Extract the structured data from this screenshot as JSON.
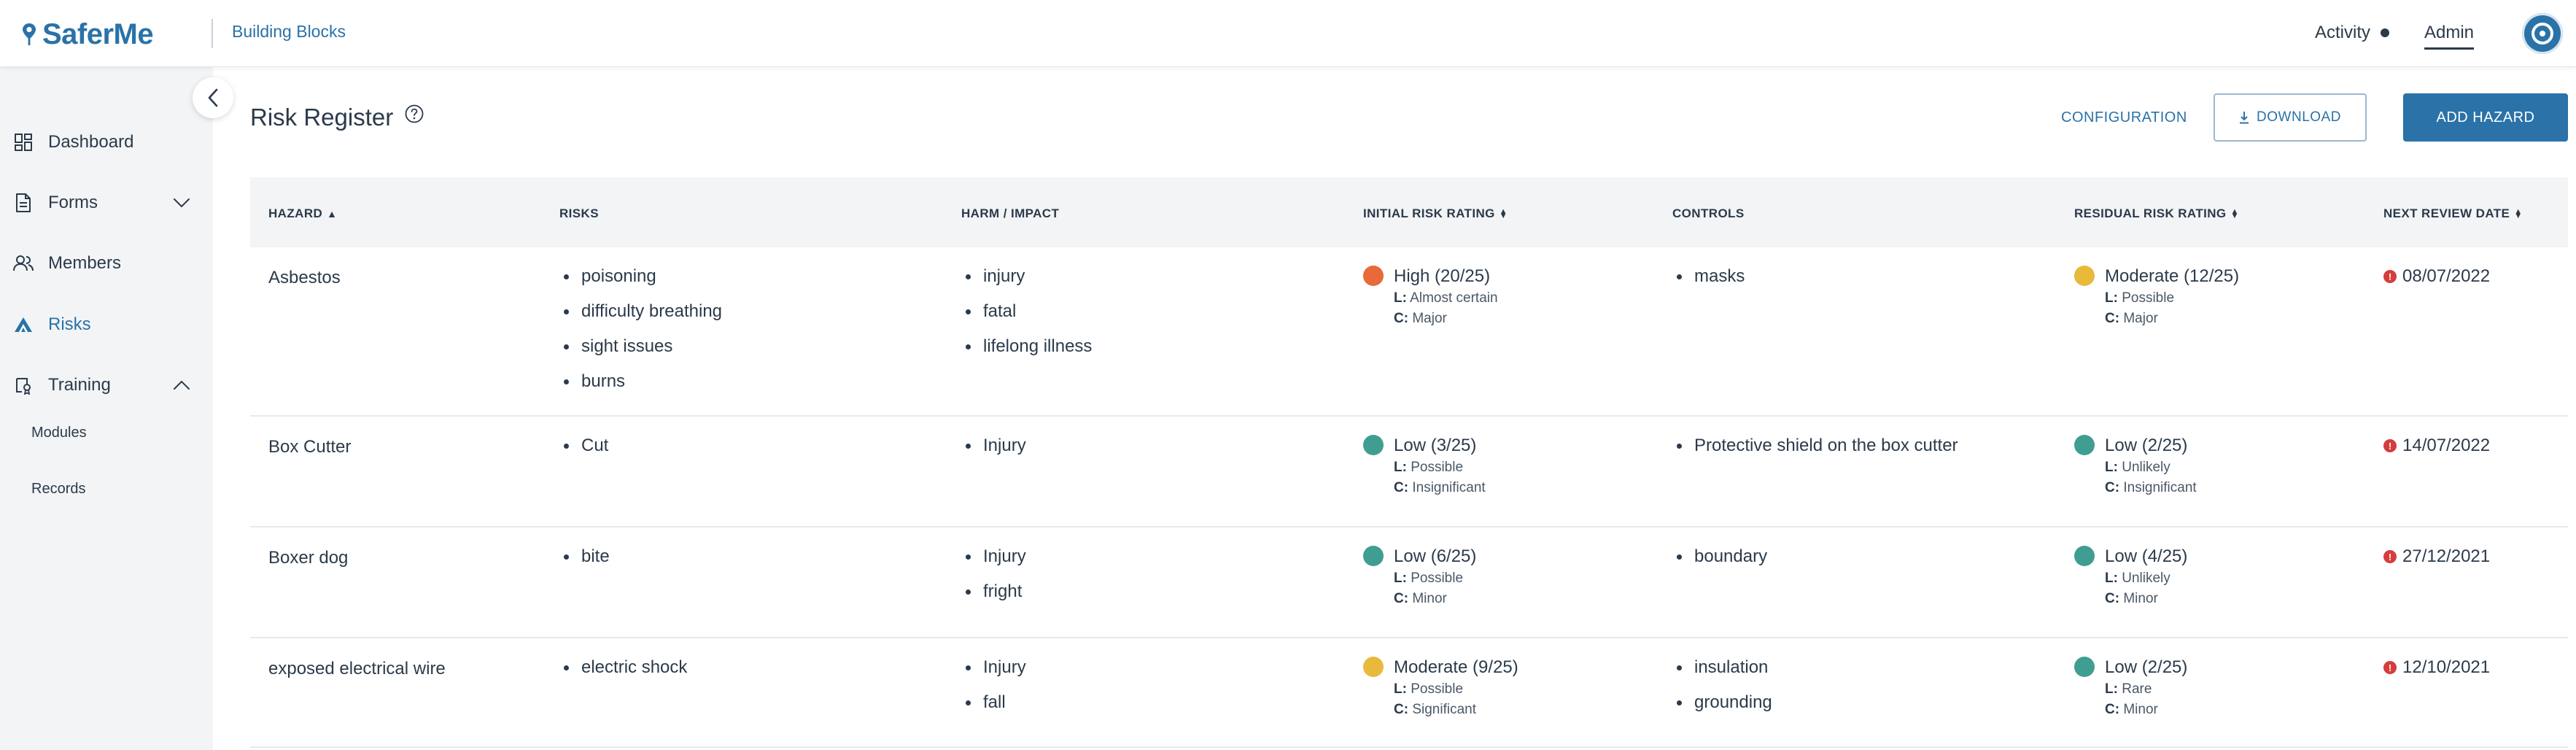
{
  "header": {
    "logo_text": "SaferMe",
    "org_name": "Building Blocks",
    "activity_label": "Activity",
    "admin_label": "Admin"
  },
  "sidebar": {
    "items": [
      {
        "label": "Dashboard",
        "icon": "dashboard-icon"
      },
      {
        "label": "Forms",
        "icon": "forms-icon"
      },
      {
        "label": "Members",
        "icon": "members-icon"
      },
      {
        "label": "Risks",
        "icon": "risks-icon"
      },
      {
        "label": "Training",
        "icon": "training-icon"
      }
    ],
    "training_sub": [
      "Modules",
      "Records"
    ]
  },
  "page": {
    "title": "Risk Register",
    "config_label": "CONFIGURATION",
    "download_label": "DOWNLOAD",
    "add_label": "ADD HAZARD"
  },
  "table": {
    "headers": [
      "HAZARD",
      "RISKS",
      "HARM / IMPACT",
      "INITIAL RISK RATING",
      "CONTROLS",
      "RESIDUAL RISK RATING",
      "NEXT REVIEW DATE"
    ],
    "rows": [
      {
        "hazard": "Asbestos",
        "risks": [
          "poisoning",
          "difficulty breathing",
          "sight issues",
          "burns"
        ],
        "harm": [
          "injury",
          "fatal",
          "lifelong illness"
        ],
        "initial": {
          "label": "High (20/25)",
          "color": "#e8693a",
          "l_key": "L:",
          "l": "Almost certain",
          "c_key": "C:",
          "c": "Major"
        },
        "controls": [
          "masks"
        ],
        "residual": {
          "label": "Moderate (12/25)",
          "color": "#e9b93c",
          "l_key": "L:",
          "l": "Possible",
          "c_key": "C:",
          "c": "Major"
        },
        "review": "08/07/2022"
      },
      {
        "hazard": "Box Cutter",
        "risks": [
          "Cut"
        ],
        "harm": [
          "Injury"
        ],
        "initial": {
          "label": "Low (3/25)",
          "color": "#3f9e91",
          "l_key": "L:",
          "l": "Possible",
          "c_key": "C:",
          "c": "Insignificant"
        },
        "controls": [
          "Protective shield on the box cutter"
        ],
        "residual": {
          "label": "Low (2/25)",
          "color": "#3f9e91",
          "l_key": "L:",
          "l": "Unlikely",
          "c_key": "C:",
          "c": "Insignificant"
        },
        "review": "14/07/2022"
      },
      {
        "hazard": "Boxer dog",
        "risks": [
          "bite"
        ],
        "harm": [
          "Injury",
          "fright"
        ],
        "initial": {
          "label": "Low (6/25)",
          "color": "#3f9e91",
          "l_key": "L:",
          "l": "Possible",
          "c_key": "C:",
          "c": "Minor"
        },
        "controls": [
          "boundary"
        ],
        "residual": {
          "label": "Low (4/25)",
          "color": "#3f9e91",
          "l_key": "L:",
          "l": "Unlikely",
          "c_key": "C:",
          "c": "Minor"
        },
        "review": "27/12/2021"
      },
      {
        "hazard": "exposed electrical wire",
        "risks": [
          "electric shock"
        ],
        "harm": [
          "Injury",
          "fall"
        ],
        "initial": {
          "label": "Moderate (9/25)",
          "color": "#e9b93c",
          "l_key": "L:",
          "l": "Possible",
          "c_key": "C:",
          "c": "Significant"
        },
        "controls": [
          "insulation",
          "grounding"
        ],
        "residual": {
          "label": "Low (2/25)",
          "color": "#3f9e91",
          "l_key": "L:",
          "l": "Rare",
          "c_key": "C:",
          "c": "Minor"
        },
        "review": "12/10/2021"
      }
    ]
  }
}
